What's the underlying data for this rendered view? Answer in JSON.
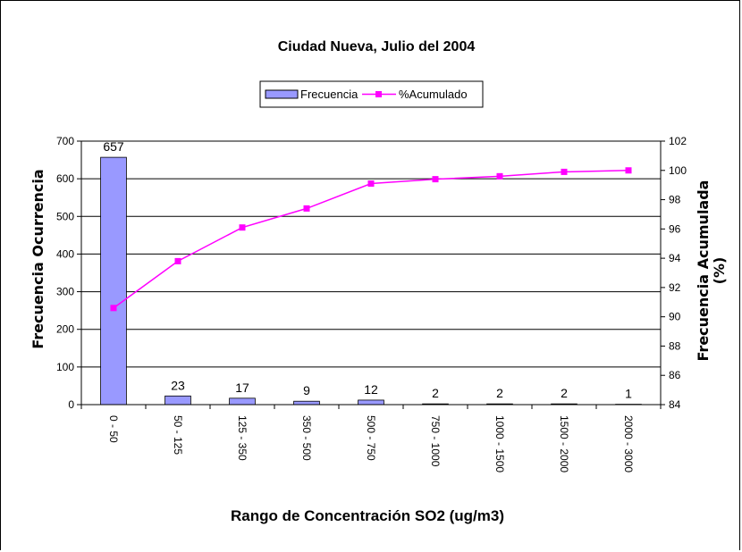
{
  "chart_data": {
    "type": "bar",
    "title": "Ciudad Nueva, Julio del 2004",
    "xlabel": "Rango de Concentración SO2 (ug/m3)",
    "ylabel": "Frecuencia Ocurrencia",
    "y2label_line1": "Frecuencia Acumulada",
    "y2label_line2": "(%)",
    "categories": [
      "0 - 50",
      "50 - 125",
      "125 - 350",
      "350 - 500",
      "500 - 750",
      "750 - 1000",
      "1000 - 1500",
      "1500 - 2000",
      "2000 - 3000"
    ],
    "series": [
      {
        "name": "Frecuencia",
        "type": "bar",
        "axis": "left",
        "values": [
          657,
          23,
          17,
          9,
          12,
          2,
          2,
          2,
          1
        ],
        "data_labels": [
          "657",
          "23",
          "17",
          "9",
          "12",
          "2",
          "2",
          "2",
          "1"
        ],
        "color": "#9999ff"
      },
      {
        "name": "%Acumulado",
        "type": "line",
        "axis": "right",
        "values": [
          90.6,
          93.8,
          96.1,
          97.4,
          99.1,
          99.4,
          99.6,
          99.9,
          100.0
        ],
        "color": "#ff00ff"
      }
    ],
    "ylim": [
      0,
      700
    ],
    "yticks": [
      0,
      100,
      200,
      300,
      400,
      500,
      600,
      700
    ],
    "y2lim": [
      84,
      102
    ],
    "y2ticks": [
      84,
      86,
      88,
      90,
      92,
      94,
      96,
      98,
      100,
      102
    ],
    "grid": true,
    "legend_position": "top-center"
  }
}
